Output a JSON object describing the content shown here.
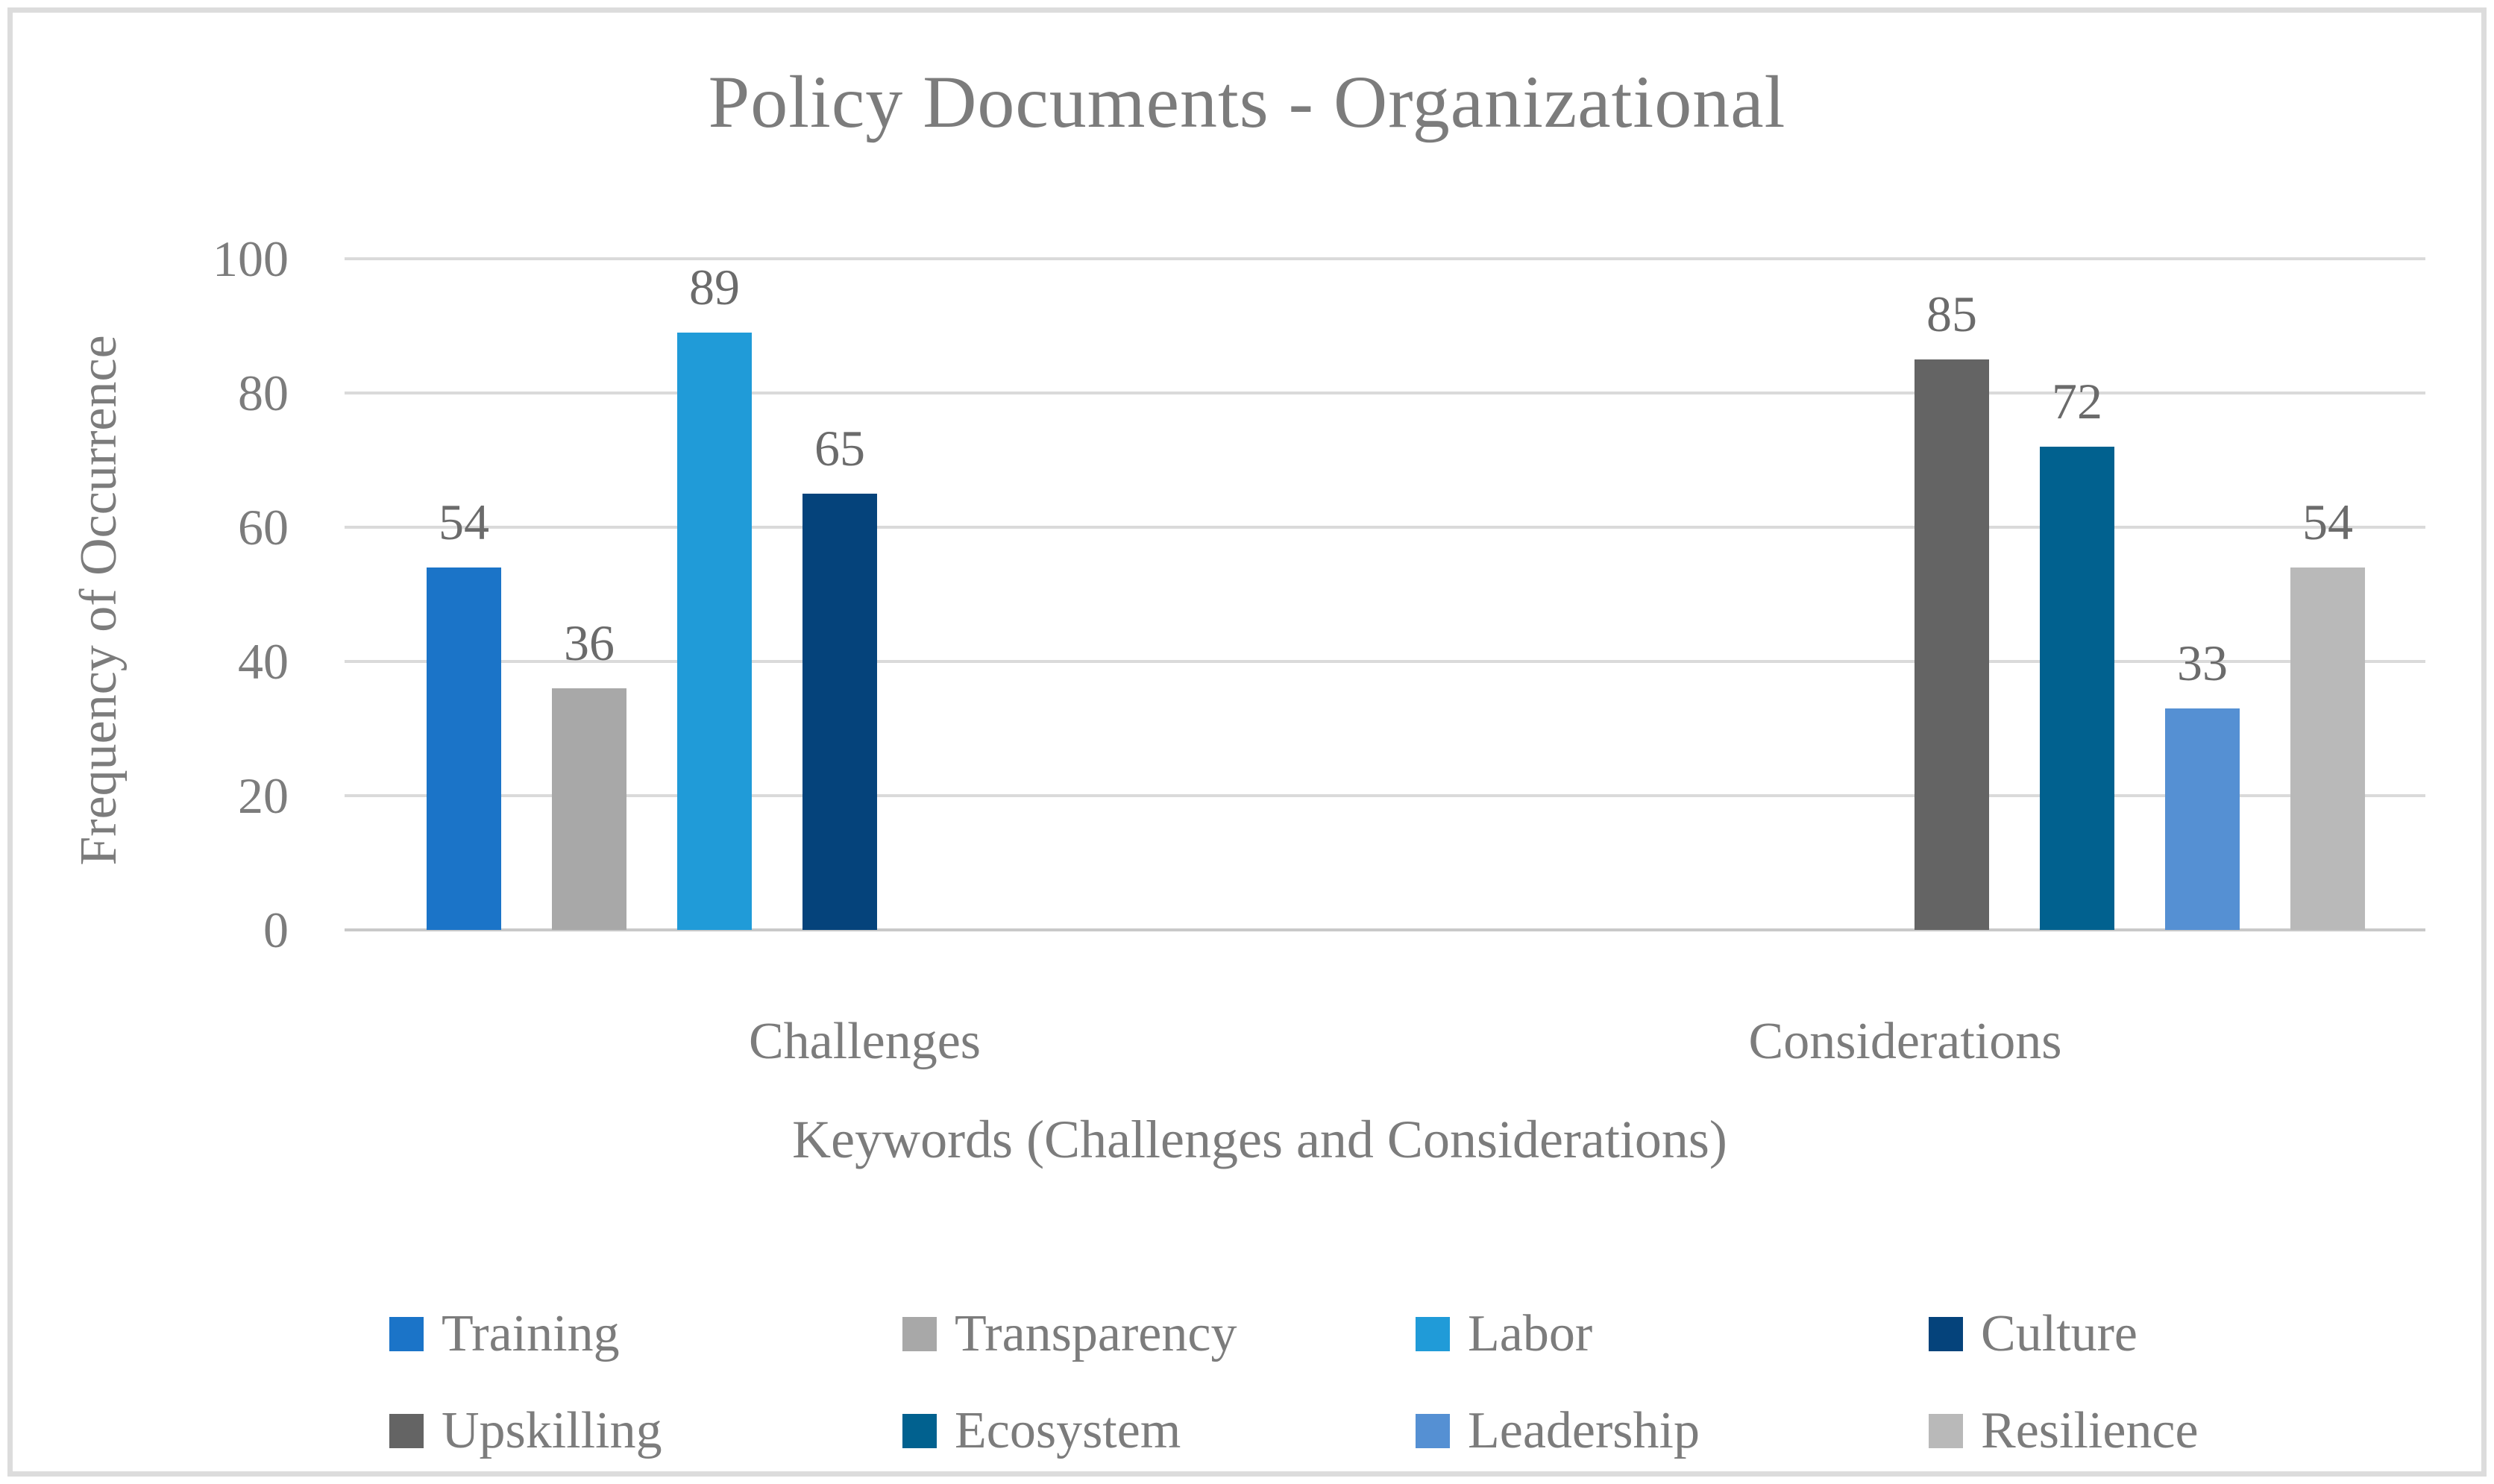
{
  "chart_data": {
    "type": "bar",
    "title": "Policy Documents - Organizational",
    "xlabel": "Keywords (Challenges and Considerations)",
    "ylabel": "Frequency of Occurrence",
    "ylim": [
      0,
      100
    ],
    "yticks": [
      0,
      20,
      40,
      60,
      80,
      100
    ],
    "grid": "horizontal",
    "legend_position": "bottom",
    "categories": [
      "Challenges",
      "Considerations"
    ],
    "series": [
      {
        "name": "Training",
        "color": "#1b74c8",
        "values": [
          54,
          null
        ]
      },
      {
        "name": "Transparency",
        "color": "#a8a8a8",
        "values": [
          36,
          null
        ]
      },
      {
        "name": "Labor",
        "color": "#209bd8",
        "values": [
          89,
          null
        ]
      },
      {
        "name": "Culture",
        "color": "#05437b",
        "values": [
          65,
          null
        ]
      },
      {
        "name": "Upskilling",
        "color": "#646464",
        "values": [
          null,
          85
        ]
      },
      {
        "name": "Ecosystem",
        "color": "#01618f",
        "values": [
          null,
          72
        ]
      },
      {
        "name": "Leadership",
        "color": "#5590d3",
        "values": [
          null,
          33
        ]
      },
      {
        "name": "Resilience",
        "color": "#b9b9b9",
        "values": [
          null,
          54
        ]
      }
    ]
  },
  "style_colors": {
    "grid_line": "#dadada",
    "baseline": "#c9c9c9",
    "text_gray": "#7c7c7c",
    "data_label_gray": "#6b6b6b",
    "frame_border": "#dcdcdc"
  }
}
